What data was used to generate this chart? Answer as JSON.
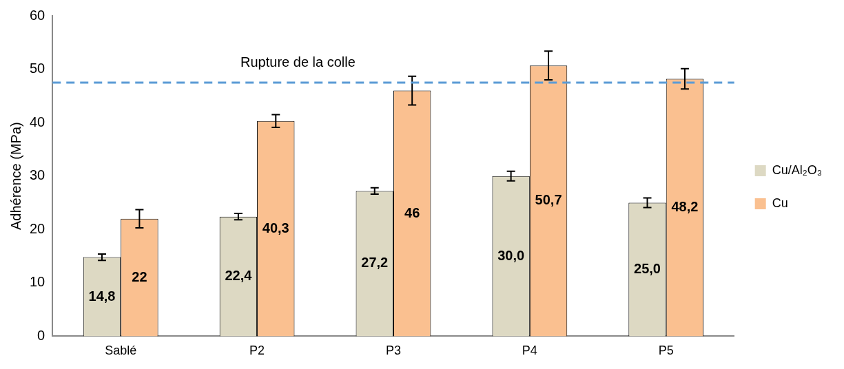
{
  "chart_data": {
    "type": "bar",
    "ylabel": "Adhérence (MPa)",
    "categories": [
      "Sablé",
      "P2",
      "P3",
      "P4",
      "P5"
    ],
    "series": [
      {
        "name": "Cu/Al₂O₃",
        "color": "#ddd9c3",
        "values": [
          14.8,
          22.4,
          27.2,
          30.0,
          25.0
        ],
        "errors": [
          0.6,
          0.6,
          0.6,
          0.9,
          0.9
        ],
        "value_labels": [
          "14,8",
          "22,4",
          "27,2",
          "30,0",
          "25,0"
        ]
      },
      {
        "name": "Cu",
        "color": "#fac090",
        "values": [
          22,
          40.3,
          46,
          50.7,
          48.2
        ],
        "errors": [
          1.7,
          1.2,
          2.7,
          2.7,
          1.9
        ],
        "value_labels": [
          "22",
          "40,3",
          "46",
          "50,7",
          "48,2"
        ]
      }
    ],
    "ylim": [
      0,
      60
    ],
    "yticks": [
      0,
      10,
      20,
      30,
      40,
      50,
      60
    ],
    "grid": false,
    "legend": "right",
    "ref_lines": [
      {
        "axis": "y",
        "value": 47.5,
        "label": "Rupture de la colle",
        "color": "#5b9bd5",
        "line_style": "dashed"
      }
    ]
  }
}
